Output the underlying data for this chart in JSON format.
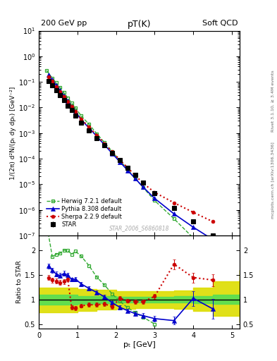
{
  "title_main": "pT(K)",
  "top_left_label": "200 GeV pp",
  "top_right_label": "Soft QCD",
  "right_label_rivet": "Rivet 3.1.10, ≥ 3.4M events",
  "right_label_arxiv": "mcplots.cern.ch [arXiv:1306.3436]",
  "watermark": "STAR_2006_S6860818",
  "ylabel_main": "1/(2π) d²N/(pₜ dy dpₜ) [GeV⁻²]",
  "ylabel_ratio": "Ratio to STAR",
  "xlabel": "pₜ [GeV]",
  "star_x": [
    0.25,
    0.35,
    0.45,
    0.55,
    0.65,
    0.75,
    0.85,
    0.95,
    1.1,
    1.3,
    1.5,
    1.7,
    1.9,
    2.1,
    2.3,
    2.5,
    2.7,
    3.0,
    3.5,
    4.0,
    4.5
  ],
  "star_y": [
    0.11,
    0.075,
    0.048,
    0.031,
    0.019,
    0.012,
    0.0078,
    0.0048,
    0.0025,
    0.0013,
    0.00065,
    0.00033,
    0.00017,
    8.8e-05,
    4.5e-05,
    2.3e-05,
    1.15e-05,
    4.5e-06,
    1.2e-06,
    3.5e-07,
    1e-07
  ],
  "star_yerr": [
    0.005,
    0.004,
    0.003,
    0.002,
    0.0015,
    0.001,
    0.0006,
    0.0004,
    0.0002,
    0.0001,
    5e-05,
    2.5e-05,
    1.3e-05,
    7e-06,
    3.5e-06,
    1.8e-06,
    9e-07,
    4e-07,
    1.5e-07,
    6e-08,
    2e-08
  ],
  "herwig_x": [
    0.2,
    0.35,
    0.45,
    0.55,
    0.65,
    0.75,
    0.85,
    0.95,
    1.1,
    1.3,
    1.5,
    1.7,
    1.9,
    2.1,
    2.3,
    2.5,
    2.7,
    3.0,
    3.5,
    4.0,
    4.5,
    5.0
  ],
  "herwig_y": [
    0.28,
    0.14,
    0.092,
    0.06,
    0.038,
    0.024,
    0.015,
    0.0095,
    0.0047,
    0.0022,
    0.00095,
    0.00043,
    0.00019,
    8.5e-05,
    3.8e-05,
    1.7e-05,
    7.5e-06,
    2.3e-06,
    4.5e-07,
    8e-08,
    1.4e-08,
    2.2e-09
  ],
  "pythia_x": [
    0.25,
    0.35,
    0.45,
    0.55,
    0.65,
    0.75,
    0.85,
    0.95,
    1.1,
    1.3,
    1.5,
    1.7,
    1.9,
    2.1,
    2.3,
    2.5,
    2.7,
    3.0,
    3.5,
    4.0,
    4.5
  ],
  "pythia_y": [
    0.185,
    0.12,
    0.073,
    0.046,
    0.029,
    0.018,
    0.011,
    0.0068,
    0.0033,
    0.0016,
    0.00075,
    0.00035,
    0.00016,
    7.5e-05,
    3.5e-05,
    1.65e-05,
    7.8e-06,
    2.8e-06,
    7e-07,
    2.1e-07,
    7e-08
  ],
  "sherpa_x": [
    0.25,
    0.35,
    0.45,
    0.55,
    0.65,
    0.75,
    0.85,
    0.95,
    1.1,
    1.3,
    1.5,
    1.7,
    1.9,
    2.1,
    2.3,
    2.5,
    2.7,
    3.0,
    3.5,
    4.0,
    4.5
  ],
  "sherpa_y": [
    0.16,
    0.105,
    0.066,
    0.042,
    0.026,
    0.017,
    0.011,
    0.007,
    0.0035,
    0.0017,
    0.00082,
    0.00039,
    0.000185,
    9e-05,
    4.4e-05,
    2.2e-05,
    1.1e-05,
    4.8e-06,
    1.9e-06,
    8e-07,
    3.5e-07
  ],
  "ratio_herwig_x": [
    0.2,
    0.35,
    0.45,
    0.55,
    0.65,
    0.75,
    0.85,
    0.95,
    1.1,
    1.3,
    1.5,
    1.7,
    1.9,
    2.1,
    2.3,
    2.5,
    2.7,
    3.0
  ],
  "ratio_herwig_y": [
    2.55,
    1.87,
    1.92,
    1.94,
    2.0,
    2.0,
    1.92,
    1.98,
    1.88,
    1.69,
    1.46,
    1.3,
    1.12,
    0.97,
    0.84,
    0.74,
    0.65,
    0.51
  ],
  "ratio_pythia_x": [
    0.25,
    0.35,
    0.45,
    0.55,
    0.65,
    0.75,
    0.85,
    0.95,
    1.1,
    1.3,
    1.5,
    1.7,
    1.9,
    2.1,
    2.3,
    2.5,
    2.7,
    3.0,
    3.5,
    4.0,
    4.5
  ],
  "ratio_pythia_y": [
    1.68,
    1.6,
    1.52,
    1.49,
    1.53,
    1.5,
    1.41,
    1.42,
    1.32,
    1.23,
    1.15,
    1.06,
    0.94,
    0.85,
    0.78,
    0.72,
    0.68,
    0.62,
    0.58,
    1.03,
    0.82
  ],
  "ratio_pythia_yerr": [
    0.05,
    0.05,
    0.05,
    0.05,
    0.05,
    0.05,
    0.04,
    0.04,
    0.04,
    0.04,
    0.04,
    0.04,
    0.04,
    0.04,
    0.04,
    0.04,
    0.05,
    0.06,
    0.08,
    0.15,
    0.2
  ],
  "ratio_sherpa_x": [
    0.25,
    0.35,
    0.45,
    0.55,
    0.65,
    0.75,
    0.85,
    0.95,
    1.1,
    1.3,
    1.5,
    1.7,
    1.9,
    2.1,
    2.3,
    2.5,
    2.7,
    3.0,
    3.5,
    4.0,
    4.5
  ],
  "ratio_sherpa_y": [
    1.45,
    1.4,
    1.38,
    1.35,
    1.37,
    1.42,
    0.85,
    0.83,
    0.88,
    0.9,
    0.9,
    0.92,
    0.86,
    1.03,
    0.98,
    0.96,
    0.96,
    1.07,
    1.72,
    1.45,
    1.4
  ],
  "ratio_sherpa_yerr": [
    0.05,
    0.05,
    0.05,
    0.05,
    0.05,
    0.05,
    0.04,
    0.04,
    0.04,
    0.04,
    0.04,
    0.04,
    0.04,
    0.04,
    0.04,
    0.04,
    0.04,
    0.05,
    0.1,
    0.1,
    0.12
  ],
  "band_x": [
    0.0,
    0.5,
    1.0,
    1.5,
    2.0,
    2.5,
    3.0,
    3.5,
    4.0,
    4.5,
    5.2
  ],
  "band_inner_lo": [
    0.9,
    0.9,
    0.92,
    0.93,
    0.94,
    0.94,
    0.94,
    0.94,
    0.93,
    0.92,
    0.9
  ],
  "band_inner_hi": [
    1.1,
    1.1,
    1.08,
    1.07,
    1.06,
    1.06,
    1.06,
    1.07,
    1.08,
    1.1,
    1.12
  ],
  "band_outer_lo": [
    0.75,
    0.75,
    0.78,
    0.8,
    0.82,
    0.83,
    0.83,
    0.82,
    0.78,
    0.68,
    0.55
  ],
  "band_outer_hi": [
    1.25,
    1.25,
    1.22,
    1.2,
    1.18,
    1.17,
    1.17,
    1.19,
    1.24,
    1.38,
    1.6
  ],
  "colors": {
    "star": "#000000",
    "herwig": "#33aa33",
    "pythia": "#0000cc",
    "sherpa": "#cc0000",
    "band_inner": "#55dd55",
    "band_outer": "#dddd00"
  },
  "ylim_main": [
    1e-07,
    10
  ],
  "ylim_ratio": [
    0.42,
    2.3
  ],
  "xlim": [
    0.0,
    5.2
  ],
  "ratio_yticks": [
    0.5,
    1.0,
    1.5,
    2.0
  ],
  "ratio_yticklabels": [
    "0.5",
    "1",
    "1.5",
    "2"
  ]
}
